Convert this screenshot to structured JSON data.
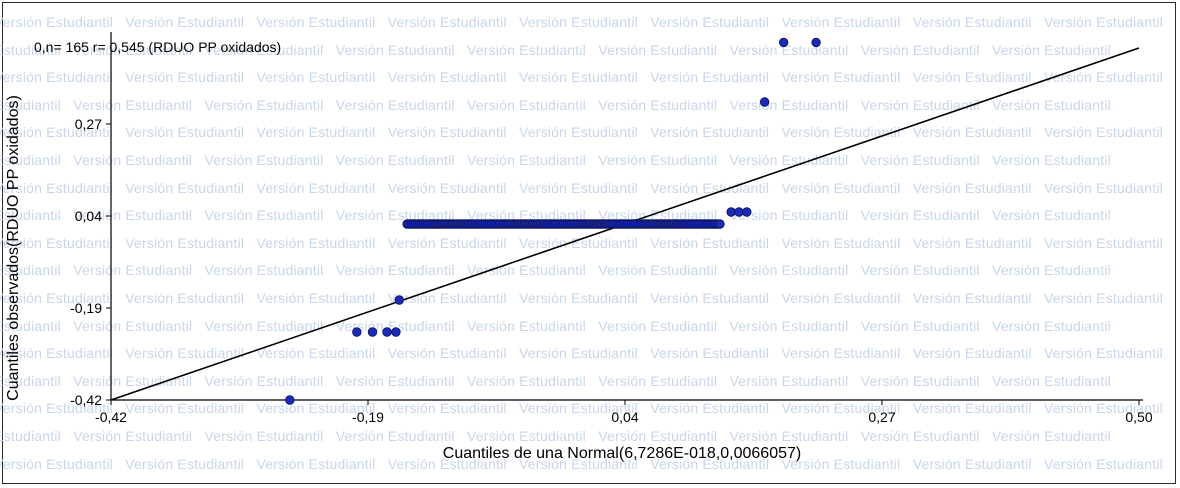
{
  "watermark": {
    "text": "Versión Estudiantil",
    "color": "#c8d6ea"
  },
  "chart_data": {
    "type": "scatter",
    "title": "0,n= 165 r= 0,545 (RDUO PP oxidados)",
    "xlabel": "Cuantiles de una Normal(6,7286E-018,0,0066057)",
    "ylabel": "Cuantiles observados(RDUO PP  oxidados)",
    "xlim": [
      -0.42,
      0.5
    ],
    "ylim": [
      -0.42,
      0.48
    ],
    "xticks": [
      {
        "value": -0.42,
        "label": "-0,42"
      },
      {
        "value": -0.19,
        "label": "-0,19"
      },
      {
        "value": 0.04,
        "label": "0,04"
      },
      {
        "value": 0.27,
        "label": "0,27"
      },
      {
        "value": 0.5,
        "label": "0,50"
      }
    ],
    "yticks": [
      {
        "value": -0.42,
        "label": "-0,42"
      },
      {
        "value": -0.19,
        "label": "-0,19"
      },
      {
        "value": 0.04,
        "label": "0,04"
      },
      {
        "value": 0.27,
        "label": "0,27"
      }
    ],
    "point_color": "#1a2bb8",
    "line_color": "#000000",
    "reference_line": {
      "x": [
        -0.42,
        0.5
      ],
      "y": [
        -0.42,
        0.46
      ]
    },
    "points": [
      {
        "x": -0.26,
        "y": -0.42
      },
      {
        "x": -0.2,
        "y": -0.25
      },
      {
        "x": -0.186,
        "y": -0.25
      },
      {
        "x": -0.173,
        "y": -0.25
      },
      {
        "x": -0.165,
        "y": -0.25
      },
      {
        "x": -0.162,
        "y": -0.17
      },
      {
        "x": 0.135,
        "y": 0.05
      },
      {
        "x": 0.142,
        "y": 0.05
      },
      {
        "x": 0.149,
        "y": 0.05
      },
      {
        "x": 0.165,
        "y": 0.325
      },
      {
        "x": 0.182,
        "y": 0.474
      },
      {
        "x": 0.211,
        "y": 0.474
      }
    ],
    "cluster": {
      "x_from": -0.155,
      "x_to": 0.125,
      "y": 0.02,
      "count": 153
    }
  }
}
